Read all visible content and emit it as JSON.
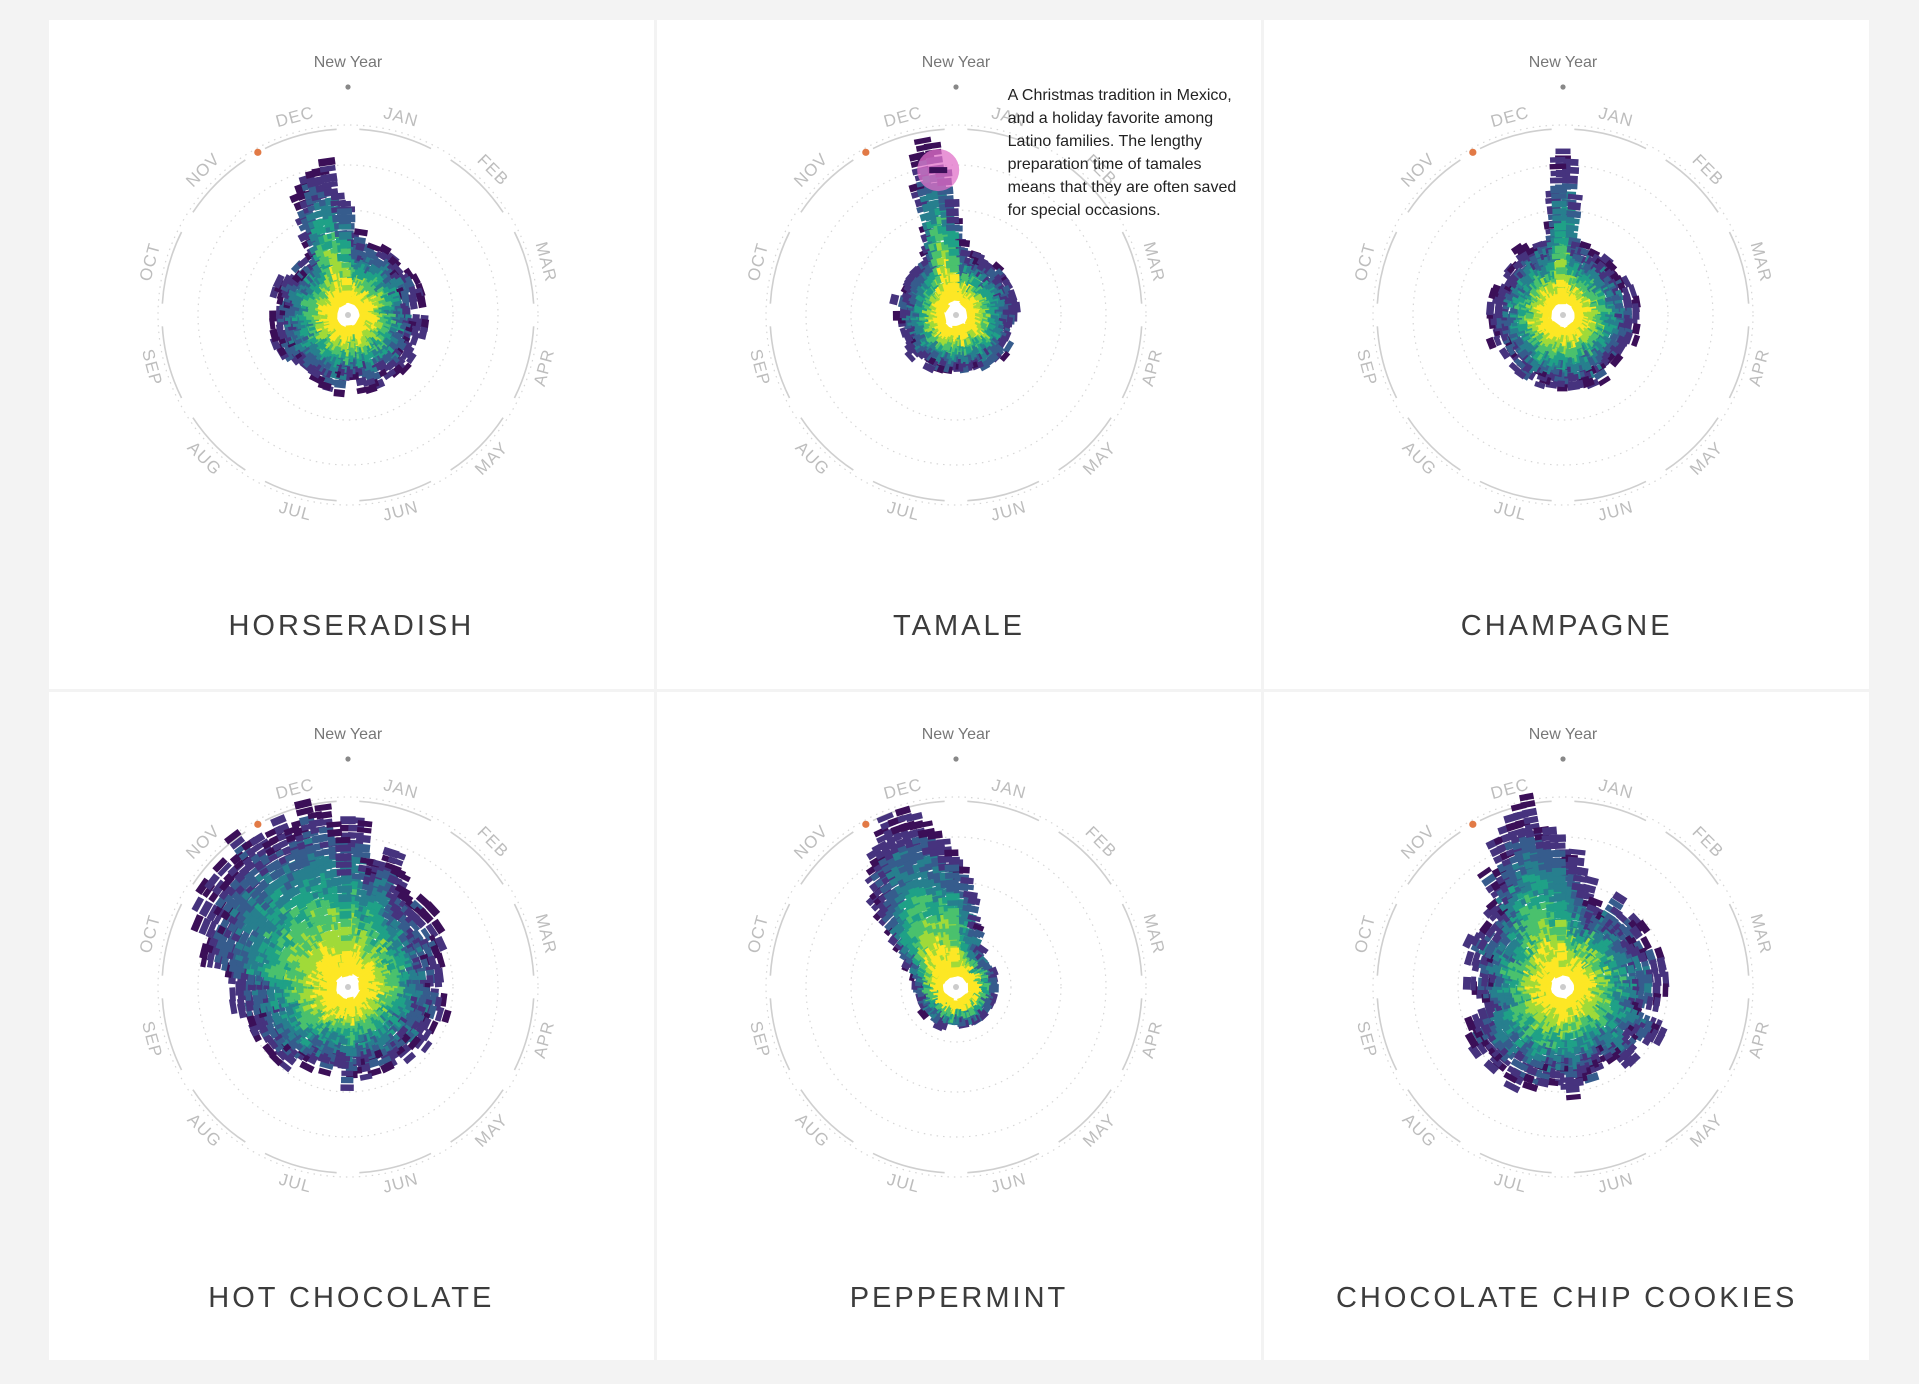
{
  "chart_data": {
    "type": "radial-bar",
    "center_label": "New Year",
    "months": [
      "JAN",
      "FEB",
      "MAR",
      "APR",
      "MAY",
      "JUN",
      "JUL",
      "AUG",
      "SEP",
      "OCT",
      "NOV",
      "DEC"
    ],
    "palette": [
      "#3b0f58",
      "#46337e",
      "#365c8d",
      "#277f8e",
      "#1fa187",
      "#4ac16d",
      "#a0da39",
      "#fde725"
    ],
    "highlight_color": "#e27a46",
    "charts": [
      {
        "title": "HORSERADISH",
        "peak_day": 352,
        "base": 58,
        "spread": 42,
        "spike": 150,
        "spike_width": 9
      },
      {
        "title": "TAMALE",
        "peak_day": 355,
        "base": 52,
        "spread": 30,
        "spike": 175,
        "spike_width": 7,
        "annotation": "A Christmas tradition in Mexico, and a holiday favorite among Latino families. The lengthy preparation time of tamales means that they are often saved for special occasions."
      },
      {
        "title": "CHAMPAGNE",
        "peak_day": 365,
        "base": 70,
        "spread": 38,
        "spike": 170,
        "spike_width": 5
      },
      {
        "title": "HOT CHOCOLATE",
        "peak_day": 335,
        "base": 62,
        "spread": 65,
        "spike": 160,
        "spike_width": 40
      },
      {
        "title": "PEPPERMINT",
        "peak_day": 345,
        "base": 22,
        "spread": 18,
        "spike": 165,
        "spike_width": 22
      },
      {
        "title": "CHOCOLATE CHIP COOKIES",
        "peak_day": 350,
        "base": 70,
        "spread": 70,
        "spike": 160,
        "spike_width": 14
      }
    ]
  }
}
